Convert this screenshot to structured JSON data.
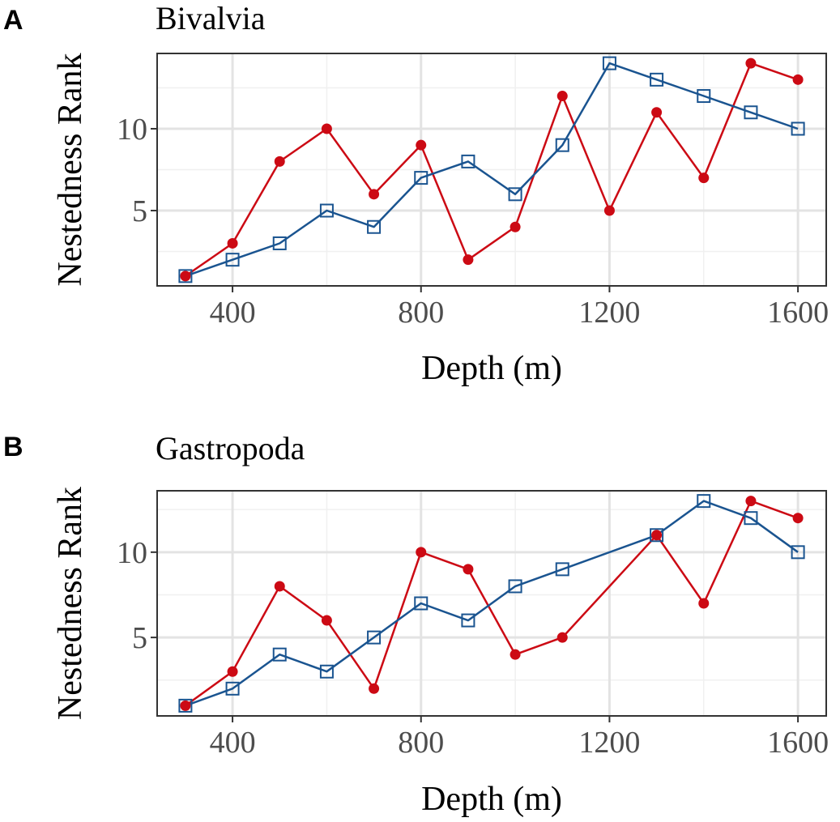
{
  "chart_data": [
    {
      "type": "line",
      "panel_label": "A",
      "title": "Bivalvia",
      "xlabel": "Depth (m)",
      "ylabel": "Nestedness Rank",
      "x_ticks": [
        400,
        800,
        1200,
        1600
      ],
      "x_tick_labels": [
        "400",
        "800",
        "1200",
        "1600"
      ],
      "y_ticks": [
        5,
        10
      ],
      "y_tick_labels": [
        "5",
        "10"
      ],
      "xlim": [
        240,
        1660
      ],
      "ylim": [
        0.4,
        14.6
      ],
      "grid": true,
      "series": [
        {
          "name": "red",
          "color": "#cc0a14",
          "marker": "filled-circle",
          "x": [
            300,
            400,
            500,
            600,
            700,
            800,
            900,
            1000,
            1100,
            1200,
            1300,
            1400,
            1500,
            1600
          ],
          "y": [
            1,
            3,
            8,
            10,
            6,
            9,
            2,
            4,
            12,
            5,
            11,
            7,
            14,
            13
          ]
        },
        {
          "name": "blue",
          "color": "#1a5490",
          "marker": "open-square",
          "x": [
            300,
            400,
            500,
            600,
            700,
            800,
            900,
            1000,
            1100,
            1200,
            1300,
            1400,
            1500,
            1600
          ],
          "y": [
            1,
            2,
            3,
            5,
            4,
            7,
            8,
            6,
            9,
            14,
            13,
            12,
            11,
            10
          ]
        }
      ]
    },
    {
      "type": "line",
      "panel_label": "B",
      "title": "Gastropoda",
      "xlabel": "Depth (m)",
      "ylabel": "Nestedness Rank",
      "x_ticks": [
        400,
        800,
        1200,
        1600
      ],
      "x_tick_labels": [
        "400",
        "800",
        "1200",
        "1600"
      ],
      "y_ticks": [
        5,
        10
      ],
      "y_tick_labels": [
        "5",
        "10"
      ],
      "xlim": [
        240,
        1660
      ],
      "ylim": [
        0.4,
        13.6
      ],
      "grid": true,
      "series": [
        {
          "name": "red",
          "color": "#cc0a14",
          "marker": "filled-circle",
          "x": [
            300,
            400,
            500,
            600,
            700,
            800,
            900,
            1000,
            1100,
            1300,
            1400,
            1500,
            1600
          ],
          "y": [
            1,
            3,
            8,
            6,
            2,
            10,
            9,
            4,
            5,
            11,
            7,
            13,
            12
          ]
        },
        {
          "name": "blue",
          "color": "#1a5490",
          "marker": "open-square",
          "x": [
            300,
            400,
            500,
            600,
            700,
            800,
            900,
            1000,
            1100,
            1300,
            1400,
            1500,
            1600
          ],
          "y": [
            1,
            2,
            4,
            3,
            5,
            7,
            6,
            8,
            9,
            11,
            13,
            12,
            10
          ]
        }
      ]
    }
  ]
}
